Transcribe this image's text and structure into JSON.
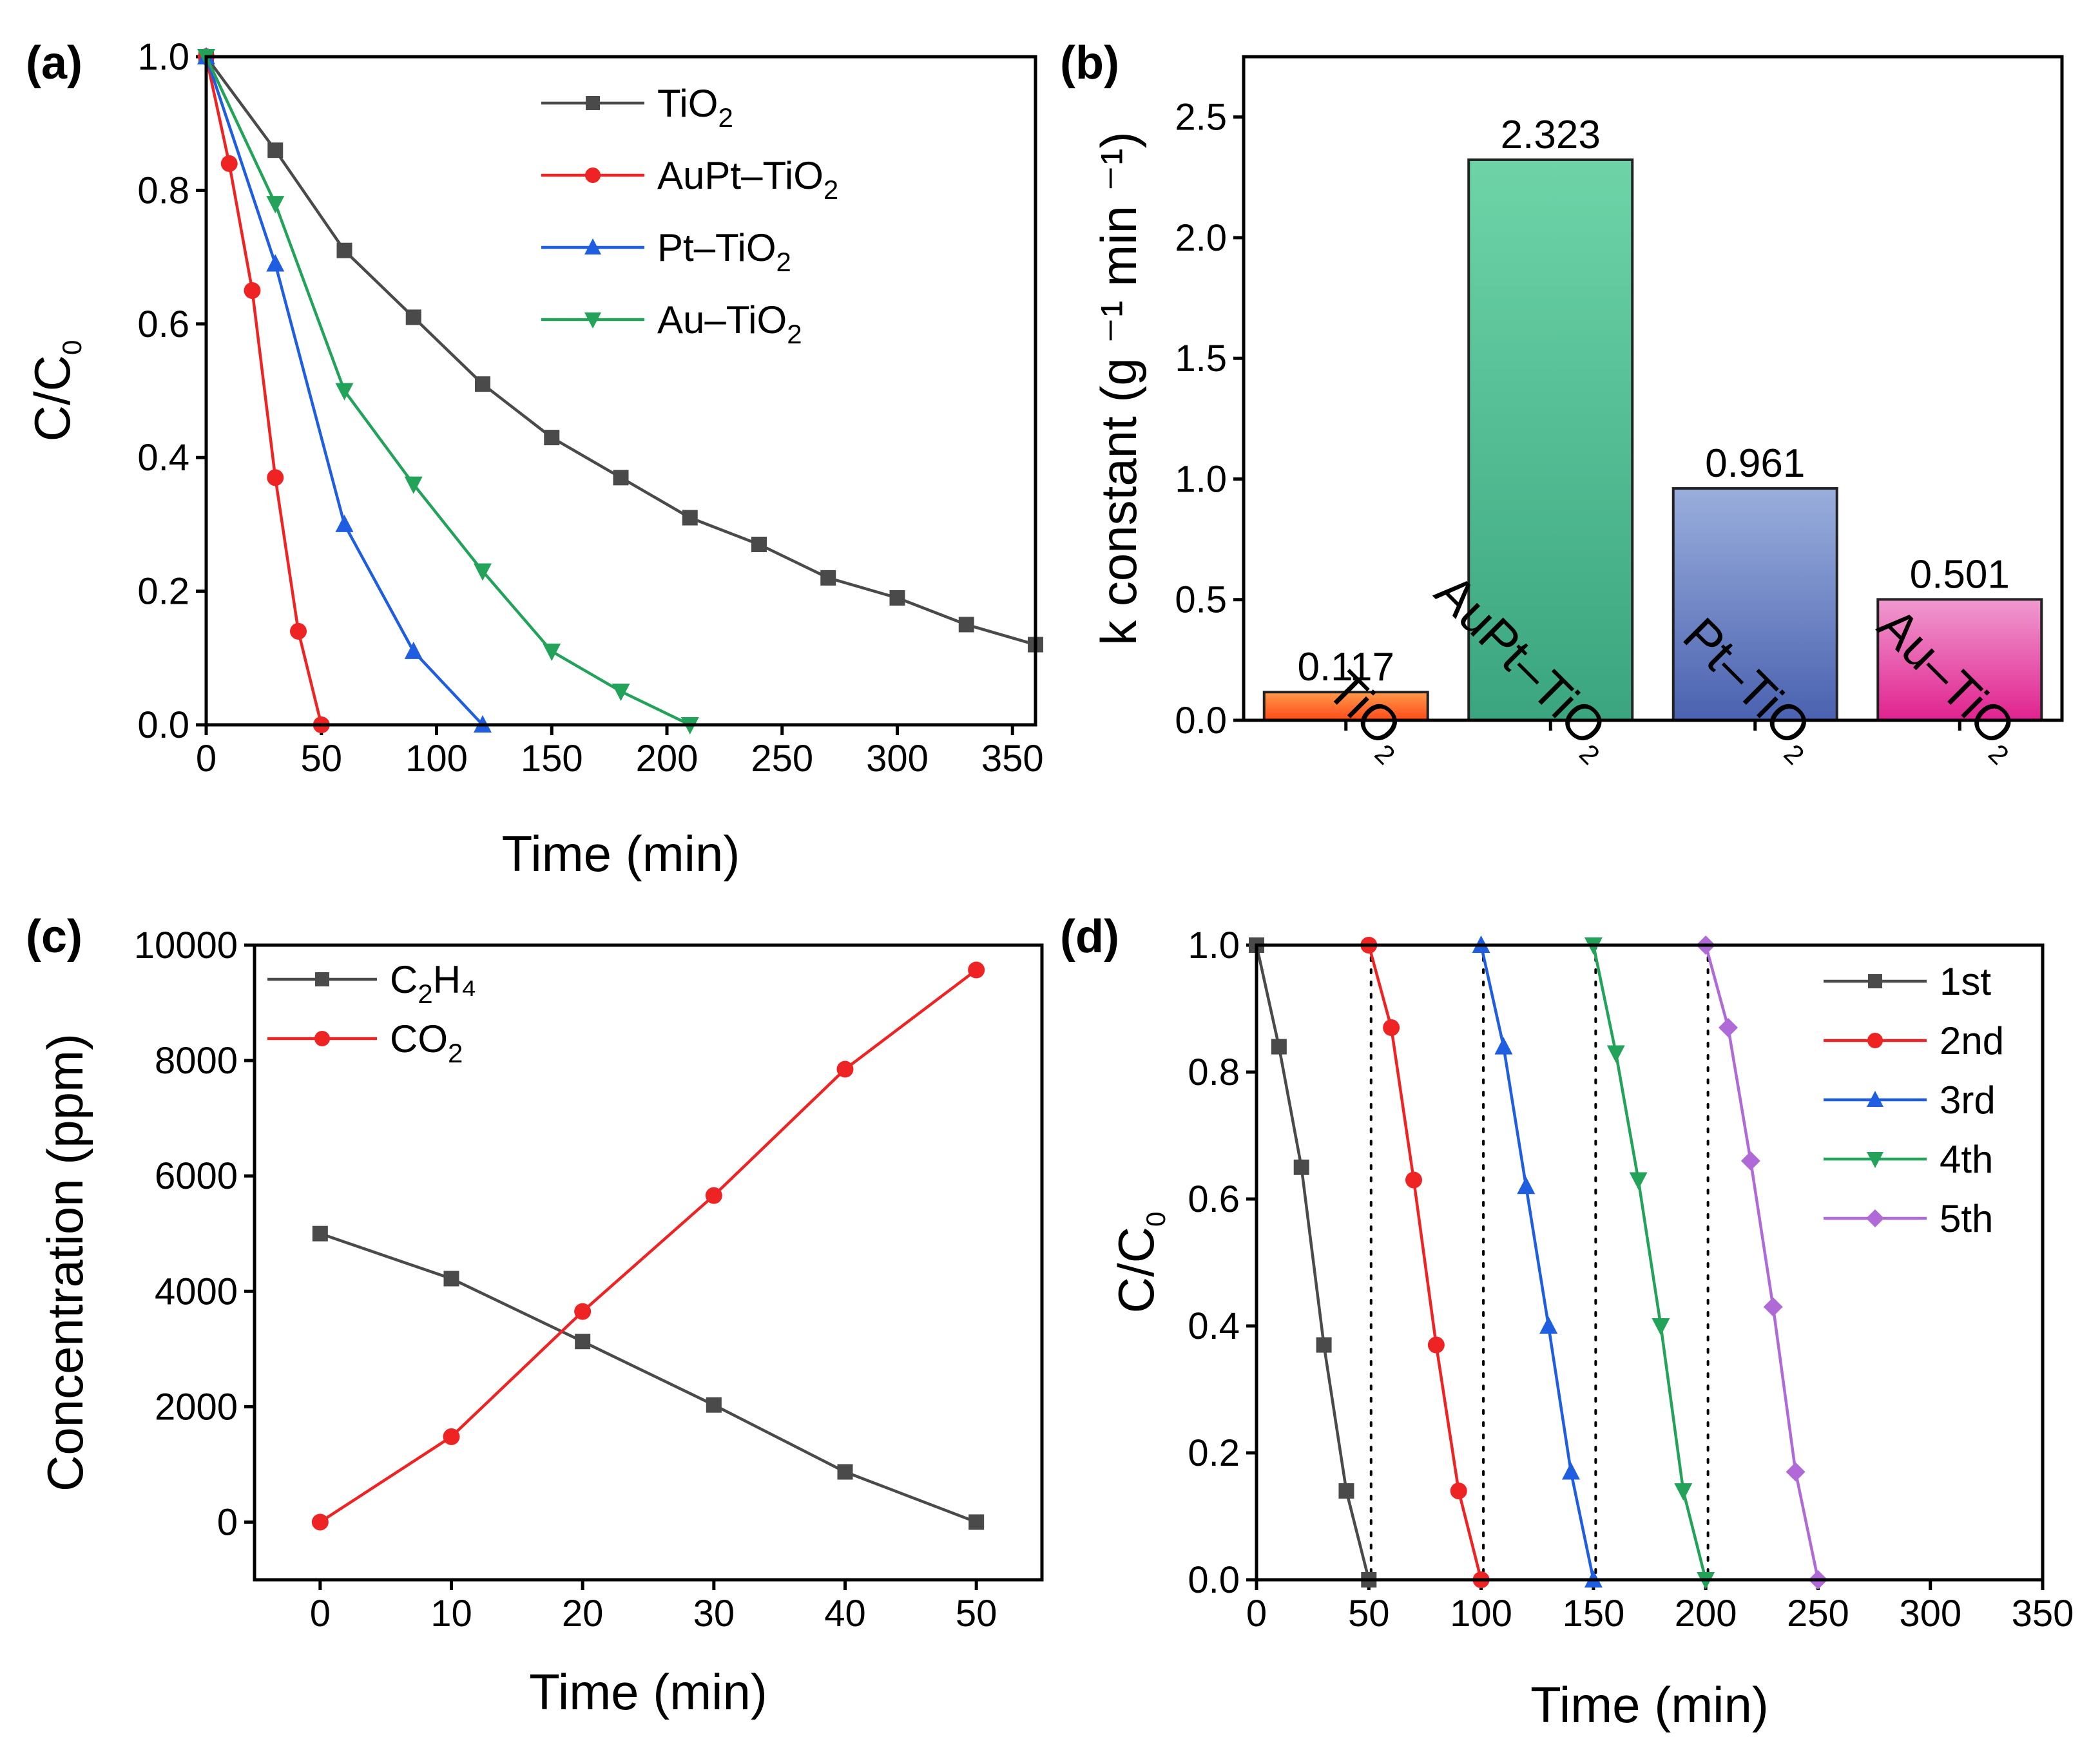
{
  "colors": {
    "TiO2": "#4a4a4a",
    "AuPt-TiO2": "#ee2424",
    "Pt-TiO2": "#1f5ee0",
    "Au-TiO2": "#23a25a",
    "fifth": "#b06ad8"
  },
  "chart_data": [
    {
      "id": "a",
      "panel_label": "(a)",
      "type": "line",
      "xlabel": "Time (min)",
      "ylabel_main": "C/C",
      "ylabel_sub": "0",
      "xlim": [
        0,
        360
      ],
      "ylim": [
        0,
        1.0
      ],
      "xticks": [
        0,
        50,
        100,
        150,
        200,
        250,
        300,
        350
      ],
      "yticks": [
        0.0,
        0.2,
        0.4,
        0.6,
        0.8,
        1.0
      ],
      "ydecimals": 1,
      "legend_position": "top-center",
      "series": [
        {
          "name": "TiO",
          "sub": "2",
          "suffix": "",
          "color_key": "TiO2",
          "marker": "square",
          "x": [
            0,
            30,
            60,
            90,
            120,
            150,
            180,
            210,
            240,
            270,
            300,
            330,
            360
          ],
          "y": [
            1.0,
            0.86,
            0.71,
            0.61,
            0.51,
            0.43,
            0.37,
            0.31,
            0.27,
            0.22,
            0.19,
            0.15,
            0.12
          ]
        },
        {
          "name": "AuPt–TiO",
          "sub": "2",
          "suffix": "",
          "color_key": "AuPt-TiO2",
          "marker": "circle",
          "x": [
            0,
            10,
            20,
            30,
            40,
            50
          ],
          "y": [
            1.0,
            0.84,
            0.65,
            0.37,
            0.14,
            0.0
          ]
        },
        {
          "name": "Pt–TiO",
          "sub": "2",
          "suffix": "",
          "color_key": "Pt-TiO2",
          "marker": "triangle-up",
          "x": [
            0,
            30,
            60,
            90,
            120
          ],
          "y": [
            1.0,
            0.69,
            0.3,
            0.11,
            0.0
          ]
        },
        {
          "name": "Au–TiO",
          "sub": "2",
          "suffix": "",
          "color_key": "Au-TiO2",
          "marker": "triangle-down",
          "x": [
            0,
            30,
            60,
            90,
            120,
            150,
            180,
            210
          ],
          "y": [
            1.0,
            0.78,
            0.5,
            0.36,
            0.23,
            0.11,
            0.05,
            0.0
          ]
        }
      ]
    },
    {
      "id": "b",
      "panel_label": "(b)",
      "type": "bar",
      "ylabel": "k constant (g ⁻¹ min ⁻¹)",
      "ylim": [
        0,
        2.75
      ],
      "yticks": [
        0.0,
        0.5,
        1.0,
        1.5,
        2.0,
        2.5
      ],
      "ydecimals": 1,
      "categories": [
        {
          "name": "TiO",
          "sub": "2"
        },
        {
          "name": "AuPt–TiO",
          "sub": "2"
        },
        {
          "name": "Pt–TiO",
          "sub": "2"
        },
        {
          "name": "Au–TiO",
          "sub": "2"
        }
      ],
      "values": [
        0.117,
        2.323,
        0.961,
        0.501
      ],
      "value_labels": [
        "0.117",
        "2.323",
        "0.961",
        "0.501"
      ],
      "bar_colors": [
        [
          "#ff9a4a",
          "#ff4a1a"
        ],
        [
          "#6ed4a8",
          "#3aa57f"
        ],
        [
          "#9aaedc",
          "#4a62b0"
        ],
        [
          "#f09ad0",
          "#e0228e"
        ]
      ]
    },
    {
      "id": "c",
      "panel_label": "(c)",
      "type": "line",
      "xlabel": "Time (min)",
      "ylabel": "Concentration (ppm)",
      "xlim": [
        -5,
        55
      ],
      "ylim": [
        -1000,
        10000
      ],
      "xticks": [
        0,
        10,
        20,
        30,
        40,
        50
      ],
      "yticks": [
        0,
        2000,
        4000,
        6000,
        8000,
        10000
      ],
      "ydecimals": 0,
      "legend_position": "top-left",
      "series": [
        {
          "name": "C",
          "sub": "2",
          "suffix": "H₄",
          "color_key": "TiO2",
          "marker": "square",
          "x": [
            0,
            10,
            20,
            30,
            40,
            50
          ],
          "y": [
            5000,
            4220,
            3130,
            2030,
            870,
            0
          ]
        },
        {
          "name": "CO",
          "sub": "2",
          "suffix": "",
          "color_key": "AuPt-TiO2",
          "marker": "circle",
          "x": [
            0,
            10,
            20,
            30,
            40,
            50
          ],
          "y": [
            0,
            1480,
            3650,
            5660,
            7850,
            9570
          ]
        }
      ]
    },
    {
      "id": "d",
      "panel_label": "(d)",
      "type": "line",
      "xlabel": "Time (min)",
      "ylabel_main": "C/C",
      "ylabel_sub": "0",
      "xlim": [
        0,
        350
      ],
      "ylim": [
        0,
        1.0
      ],
      "xticks": [
        0,
        50,
        100,
        150,
        200,
        250,
        300,
        350
      ],
      "yticks": [
        0.0,
        0.2,
        0.4,
        0.6,
        0.8,
        1.0
      ],
      "ydecimals": 1,
      "legend_position": "top-right",
      "guides_x": [
        51,
        101,
        151,
        201
      ],
      "series": [
        {
          "name": "1st",
          "sub": "",
          "suffix": "",
          "color_key": "TiO2",
          "marker": "square",
          "x": [
            0,
            10,
            20,
            30,
            40,
            50
          ],
          "y": [
            1.0,
            0.84,
            0.65,
            0.37,
            0.14,
            0.0
          ]
        },
        {
          "name": "2nd",
          "sub": "",
          "suffix": "",
          "color_key": "AuPt-TiO2",
          "marker": "circle",
          "x": [
            50,
            60,
            70,
            80,
            90,
            100
          ],
          "y": [
            1.0,
            0.87,
            0.63,
            0.37,
            0.14,
            0.0
          ]
        },
        {
          "name": "3rd",
          "sub": "",
          "suffix": "",
          "color_key": "Pt-TiO2",
          "marker": "triangle-up",
          "x": [
            100,
            110,
            120,
            130,
            140,
            150
          ],
          "y": [
            1.0,
            0.84,
            0.62,
            0.4,
            0.17,
            0.0
          ]
        },
        {
          "name": "4th",
          "sub": "",
          "suffix": "",
          "color_key": "Au-TiO2",
          "marker": "triangle-down",
          "x": [
            150,
            160,
            170,
            180,
            190,
            200
          ],
          "y": [
            1.0,
            0.83,
            0.63,
            0.4,
            0.14,
            0.0
          ]
        },
        {
          "name": "5th",
          "sub": "",
          "suffix": "",
          "color_key": "fifth",
          "marker": "diamond",
          "x": [
            200,
            210,
            220,
            230,
            240,
            250
          ],
          "y": [
            1.0,
            0.87,
            0.66,
            0.43,
            0.17,
            0.0
          ]
        }
      ]
    }
  ]
}
